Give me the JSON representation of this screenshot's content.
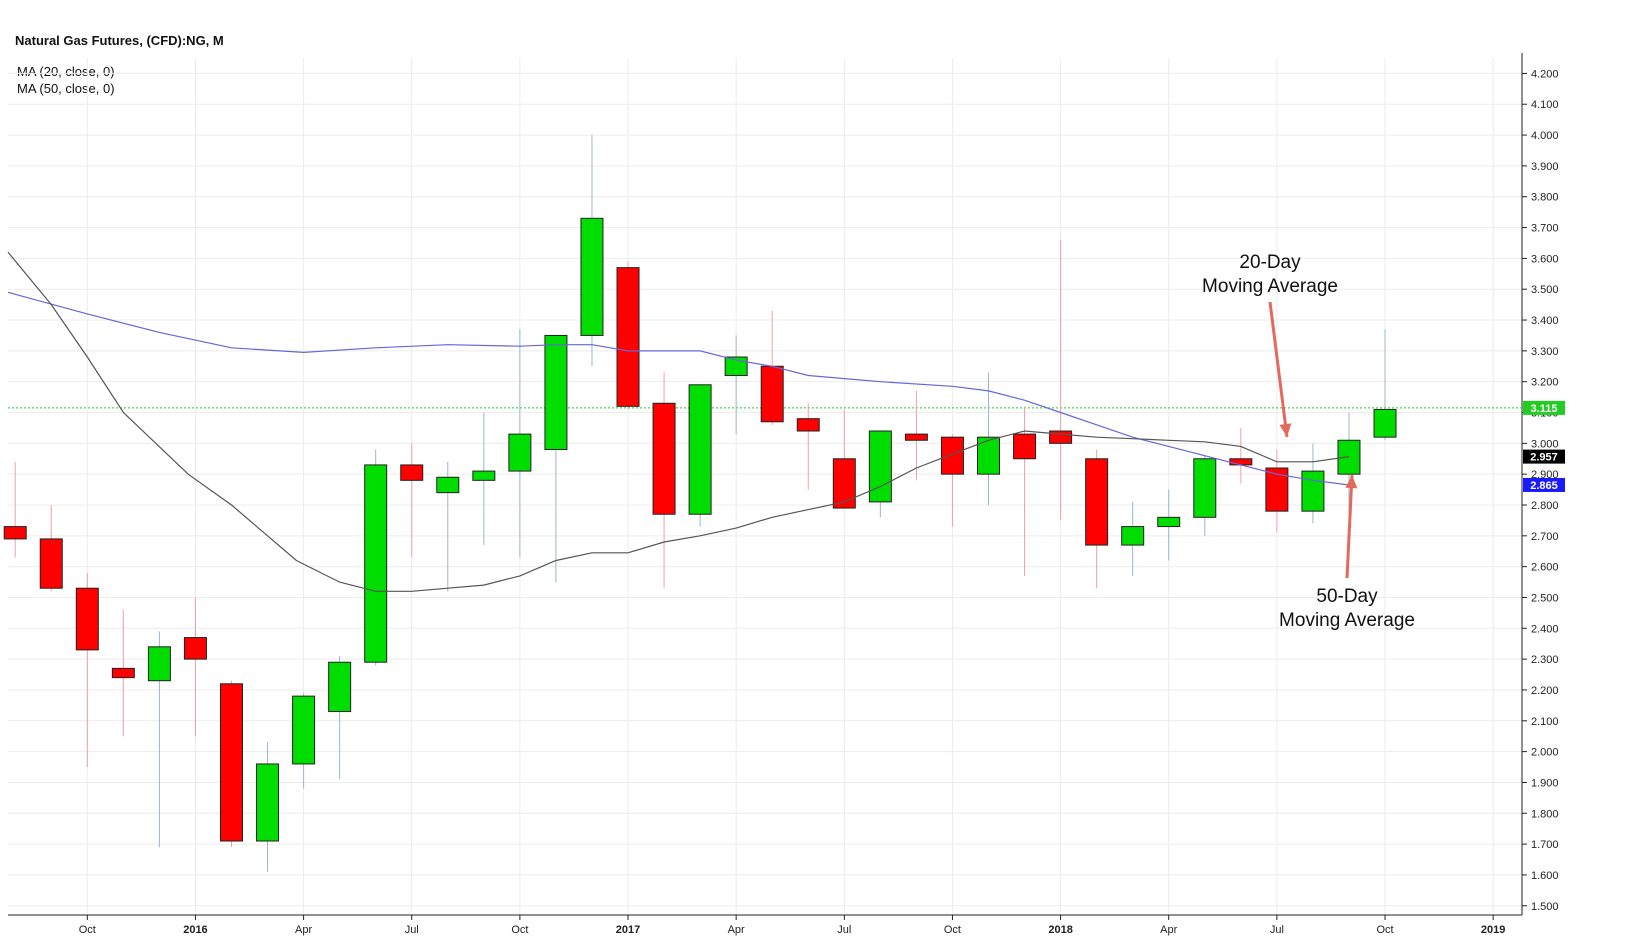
{
  "chart_data": {
    "type": "candlestick",
    "title": "Natural Gas Futures, (CFD):NG, M",
    "indicators": [
      "MA (20, close, 0)",
      "MA (50, close, 0)"
    ],
    "x_tick_labels": [
      "Oct",
      "2016",
      "Apr",
      "Jul",
      "Oct",
      "2017",
      "Apr",
      "Jul",
      "Oct",
      "2018",
      "Apr",
      "Jul",
      "Oct",
      "2019"
    ],
    "x_tick_bold": [
      false,
      true,
      false,
      false,
      false,
      true,
      false,
      false,
      false,
      true,
      false,
      false,
      false,
      true
    ],
    "x_tick_months": [
      2,
      5,
      8,
      11,
      14,
      17,
      20,
      23,
      26,
      29,
      32,
      35,
      38,
      41
    ],
    "y_tick_labels": [
      "1.500",
      "1.600",
      "1.700",
      "1.800",
      "1.900",
      "2.000",
      "2.100",
      "2.200",
      "2.300",
      "2.400",
      "2.500",
      "2.600",
      "2.700",
      "2.800",
      "2.900",
      "3.000",
      "3.100",
      "3.200",
      "3.300",
      "3.400",
      "3.500",
      "3.600",
      "3.700",
      "3.800",
      "3.900",
      "4.000",
      "4.100",
      "4.200"
    ],
    "ylim": [
      1.47,
      4.25
    ],
    "xlim": [
      -0.2,
      41.8
    ],
    "grid": true,
    "candles": [
      {
        "t": "2015-07",
        "open": 2.73,
        "high": 2.94,
        "low": 2.63,
        "close": 2.69
      },
      {
        "t": "2015-08",
        "open": 2.69,
        "high": 2.8,
        "low": 2.52,
        "close": 2.53
      },
      {
        "t": "2015-09",
        "open": 2.53,
        "high": 2.58,
        "low": 1.95,
        "close": 2.33
      },
      {
        "t": "2015-10",
        "open": 2.27,
        "high": 2.46,
        "low": 2.05,
        "close": 2.24
      },
      {
        "t": "2015-11",
        "open": 2.23,
        "high": 2.39,
        "low": 1.69,
        "close": 2.34
      },
      {
        "t": "2015-12",
        "open": 2.37,
        "high": 2.5,
        "low": 2.05,
        "close": 2.3
      },
      {
        "t": "2016-01",
        "open": 2.22,
        "high": 2.23,
        "low": 1.69,
        "close": 1.71
      },
      {
        "t": "2016-02",
        "open": 1.71,
        "high": 2.03,
        "low": 1.61,
        "close": 1.96
      },
      {
        "t": "2016-03",
        "open": 1.96,
        "high": 2.19,
        "low": 1.88,
        "close": 2.18
      },
      {
        "t": "2016-04",
        "open": 2.13,
        "high": 2.31,
        "low": 1.91,
        "close": 2.29
      },
      {
        "t": "2016-05",
        "open": 2.29,
        "high": 2.98,
        "low": 2.28,
        "close": 2.93
      },
      {
        "t": "2016-06",
        "open": 2.93,
        "high": 3.0,
        "low": 2.63,
        "close": 2.88
      },
      {
        "t": "2016-07",
        "open": 2.84,
        "high": 2.94,
        "low": 2.52,
        "close": 2.89
      },
      {
        "t": "2016-08",
        "open": 2.88,
        "high": 3.1,
        "low": 2.67,
        "close": 2.91
      },
      {
        "t": "2016-09",
        "open": 2.91,
        "high": 3.37,
        "low": 2.63,
        "close": 3.03
      },
      {
        "t": "2016-10",
        "open": 2.98,
        "high": 3.35,
        "low": 2.55,
        "close": 3.35
      },
      {
        "t": "2016-11",
        "open": 3.35,
        "high": 4.0,
        "low": 3.25,
        "close": 3.73
      },
      {
        "t": "2016-12",
        "open": 3.57,
        "high": 3.59,
        "low": 3.11,
        "close": 3.12
      },
      {
        "t": "2017-01",
        "open": 3.13,
        "high": 3.23,
        "low": 2.53,
        "close": 2.77
      },
      {
        "t": "2017-02",
        "open": 2.77,
        "high": 3.19,
        "low": 2.73,
        "close": 3.19
      },
      {
        "t": "2017-03",
        "open": 3.22,
        "high": 3.35,
        "low": 3.03,
        "close": 3.28
      },
      {
        "t": "2017-04",
        "open": 3.25,
        "high": 3.43,
        "low": 3.06,
        "close": 3.07
      },
      {
        "t": "2017-05",
        "open": 3.08,
        "high": 3.13,
        "low": 2.85,
        "close": 3.04
      },
      {
        "t": "2017-06",
        "open": 2.95,
        "high": 3.11,
        "low": 2.8,
        "close": 2.79
      },
      {
        "t": "2017-07",
        "open": 2.81,
        "high": 3.03,
        "low": 2.76,
        "close": 3.04
      },
      {
        "t": "2017-08",
        "open": 3.03,
        "high": 3.17,
        "low": 2.88,
        "close": 3.01
      },
      {
        "t": "2017-09",
        "open": 3.02,
        "high": 3.03,
        "low": 2.73,
        "close": 2.9
      },
      {
        "t": "2017-10",
        "open": 2.9,
        "high": 3.23,
        "low": 2.8,
        "close": 3.02
      },
      {
        "t": "2017-11",
        "open": 3.03,
        "high": 3.12,
        "low": 2.57,
        "close": 2.95
      },
      {
        "t": "2017-12",
        "open": 3.04,
        "high": 3.66,
        "low": 2.75,
        "close": 3.0
      },
      {
        "t": "2018-01",
        "open": 2.95,
        "high": 2.98,
        "low": 2.53,
        "close": 2.67
      },
      {
        "t": "2018-02",
        "open": 2.67,
        "high": 2.81,
        "low": 2.57,
        "close": 2.73
      },
      {
        "t": "2018-03",
        "open": 2.73,
        "high": 2.85,
        "low": 2.62,
        "close": 2.76
      },
      {
        "t": "2018-04",
        "open": 2.76,
        "high": 2.96,
        "low": 2.7,
        "close": 2.95
      },
      {
        "t": "2018-05",
        "open": 2.95,
        "high": 3.05,
        "low": 2.87,
        "close": 2.93
      },
      {
        "t": "2018-06",
        "open": 2.92,
        "high": 2.98,
        "low": 2.71,
        "close": 2.78
      },
      {
        "t": "2018-07",
        "open": 2.78,
        "high": 3.0,
        "low": 2.74,
        "close": 2.91
      },
      {
        "t": "2018-08",
        "open": 2.9,
        "high": 3.1,
        "low": 2.75,
        "close": 3.01
      },
      {
        "t": "2018-09",
        "open": 3.02,
        "high": 3.37,
        "low": 3.01,
        "close": 3.11
      }
    ],
    "ma20": [
      [
        -0.2,
        3.62
      ],
      [
        1,
        3.45
      ],
      [
        2,
        3.28
      ],
      [
        3,
        3.1
      ],
      [
        4.8,
        2.9
      ],
      [
        6,
        2.8
      ],
      [
        7.8,
        2.62
      ],
      [
        9,
        2.55
      ],
      [
        10,
        2.52
      ],
      [
        11,
        2.52
      ],
      [
        12,
        2.53
      ],
      [
        13,
        2.54
      ],
      [
        14,
        2.57
      ],
      [
        15,
        2.62
      ],
      [
        16,
        2.645
      ],
      [
        17,
        2.645
      ],
      [
        18,
        2.68
      ],
      [
        19,
        2.7
      ],
      [
        20,
        2.725
      ],
      [
        21,
        2.76
      ],
      [
        22,
        2.785
      ],
      [
        23,
        2.81
      ],
      [
        24,
        2.86
      ],
      [
        25,
        2.92
      ],
      [
        26,
        2.965
      ],
      [
        27,
        3.01
      ],
      [
        28,
        3.04
      ],
      [
        29,
        3.03
      ],
      [
        30,
        3.02
      ],
      [
        31,
        3.015
      ],
      [
        32,
        3.01
      ],
      [
        33,
        3.005
      ],
      [
        34,
        2.99
      ],
      [
        35,
        2.94
      ],
      [
        36,
        2.94
      ],
      [
        37,
        2.957
      ]
    ],
    "ma50": [
      [
        -0.2,
        3.49
      ],
      [
        2,
        3.42
      ],
      [
        4,
        3.36
      ],
      [
        6,
        3.31
      ],
      [
        8,
        3.295
      ],
      [
        10,
        3.31
      ],
      [
        12,
        3.32
      ],
      [
        14,
        3.315
      ],
      [
        15,
        3.32
      ],
      [
        16,
        3.32
      ],
      [
        17,
        3.3
      ],
      [
        18,
        3.3
      ],
      [
        19,
        3.3
      ],
      [
        20,
        3.27
      ],
      [
        21,
        3.25
      ],
      [
        22,
        3.22
      ],
      [
        24,
        3.2
      ],
      [
        26,
        3.185
      ],
      [
        27,
        3.17
      ],
      [
        28,
        3.14
      ],
      [
        29,
        3.1
      ],
      [
        30,
        3.06
      ],
      [
        31,
        3.02
      ],
      [
        32,
        2.99
      ],
      [
        33,
        2.96
      ],
      [
        34,
        2.93
      ],
      [
        35,
        2.9
      ],
      [
        36,
        2.88
      ],
      [
        37,
        2.865
      ]
    ],
    "current_price_line": 3.115,
    "price_tags": [
      {
        "label": "3.115",
        "value": 3.115,
        "color": "#22cc22"
      },
      {
        "label": "2.957",
        "value": 2.957,
        "color": "#000000"
      },
      {
        "label": "2.865",
        "value": 2.865,
        "color": "#1a1aff"
      }
    ],
    "annotations": [
      {
        "lines": [
          "20-Day",
          "Moving Average"
        ],
        "arrow_to": {
          "x": 35.5,
          "y": 2.96
        }
      },
      {
        "lines": [
          "50-Day",
          "Moving Average"
        ],
        "arrow_to": {
          "x": 37.4,
          "y": 2.87
        }
      }
    ],
    "colors": {
      "up": "#00dd00",
      "down": "#ff0000",
      "ma20": "#555555",
      "ma50": "#6666dd",
      "arrow": "#e36a5a",
      "grid": "#ececec",
      "price_line": "#22cc22"
    }
  }
}
